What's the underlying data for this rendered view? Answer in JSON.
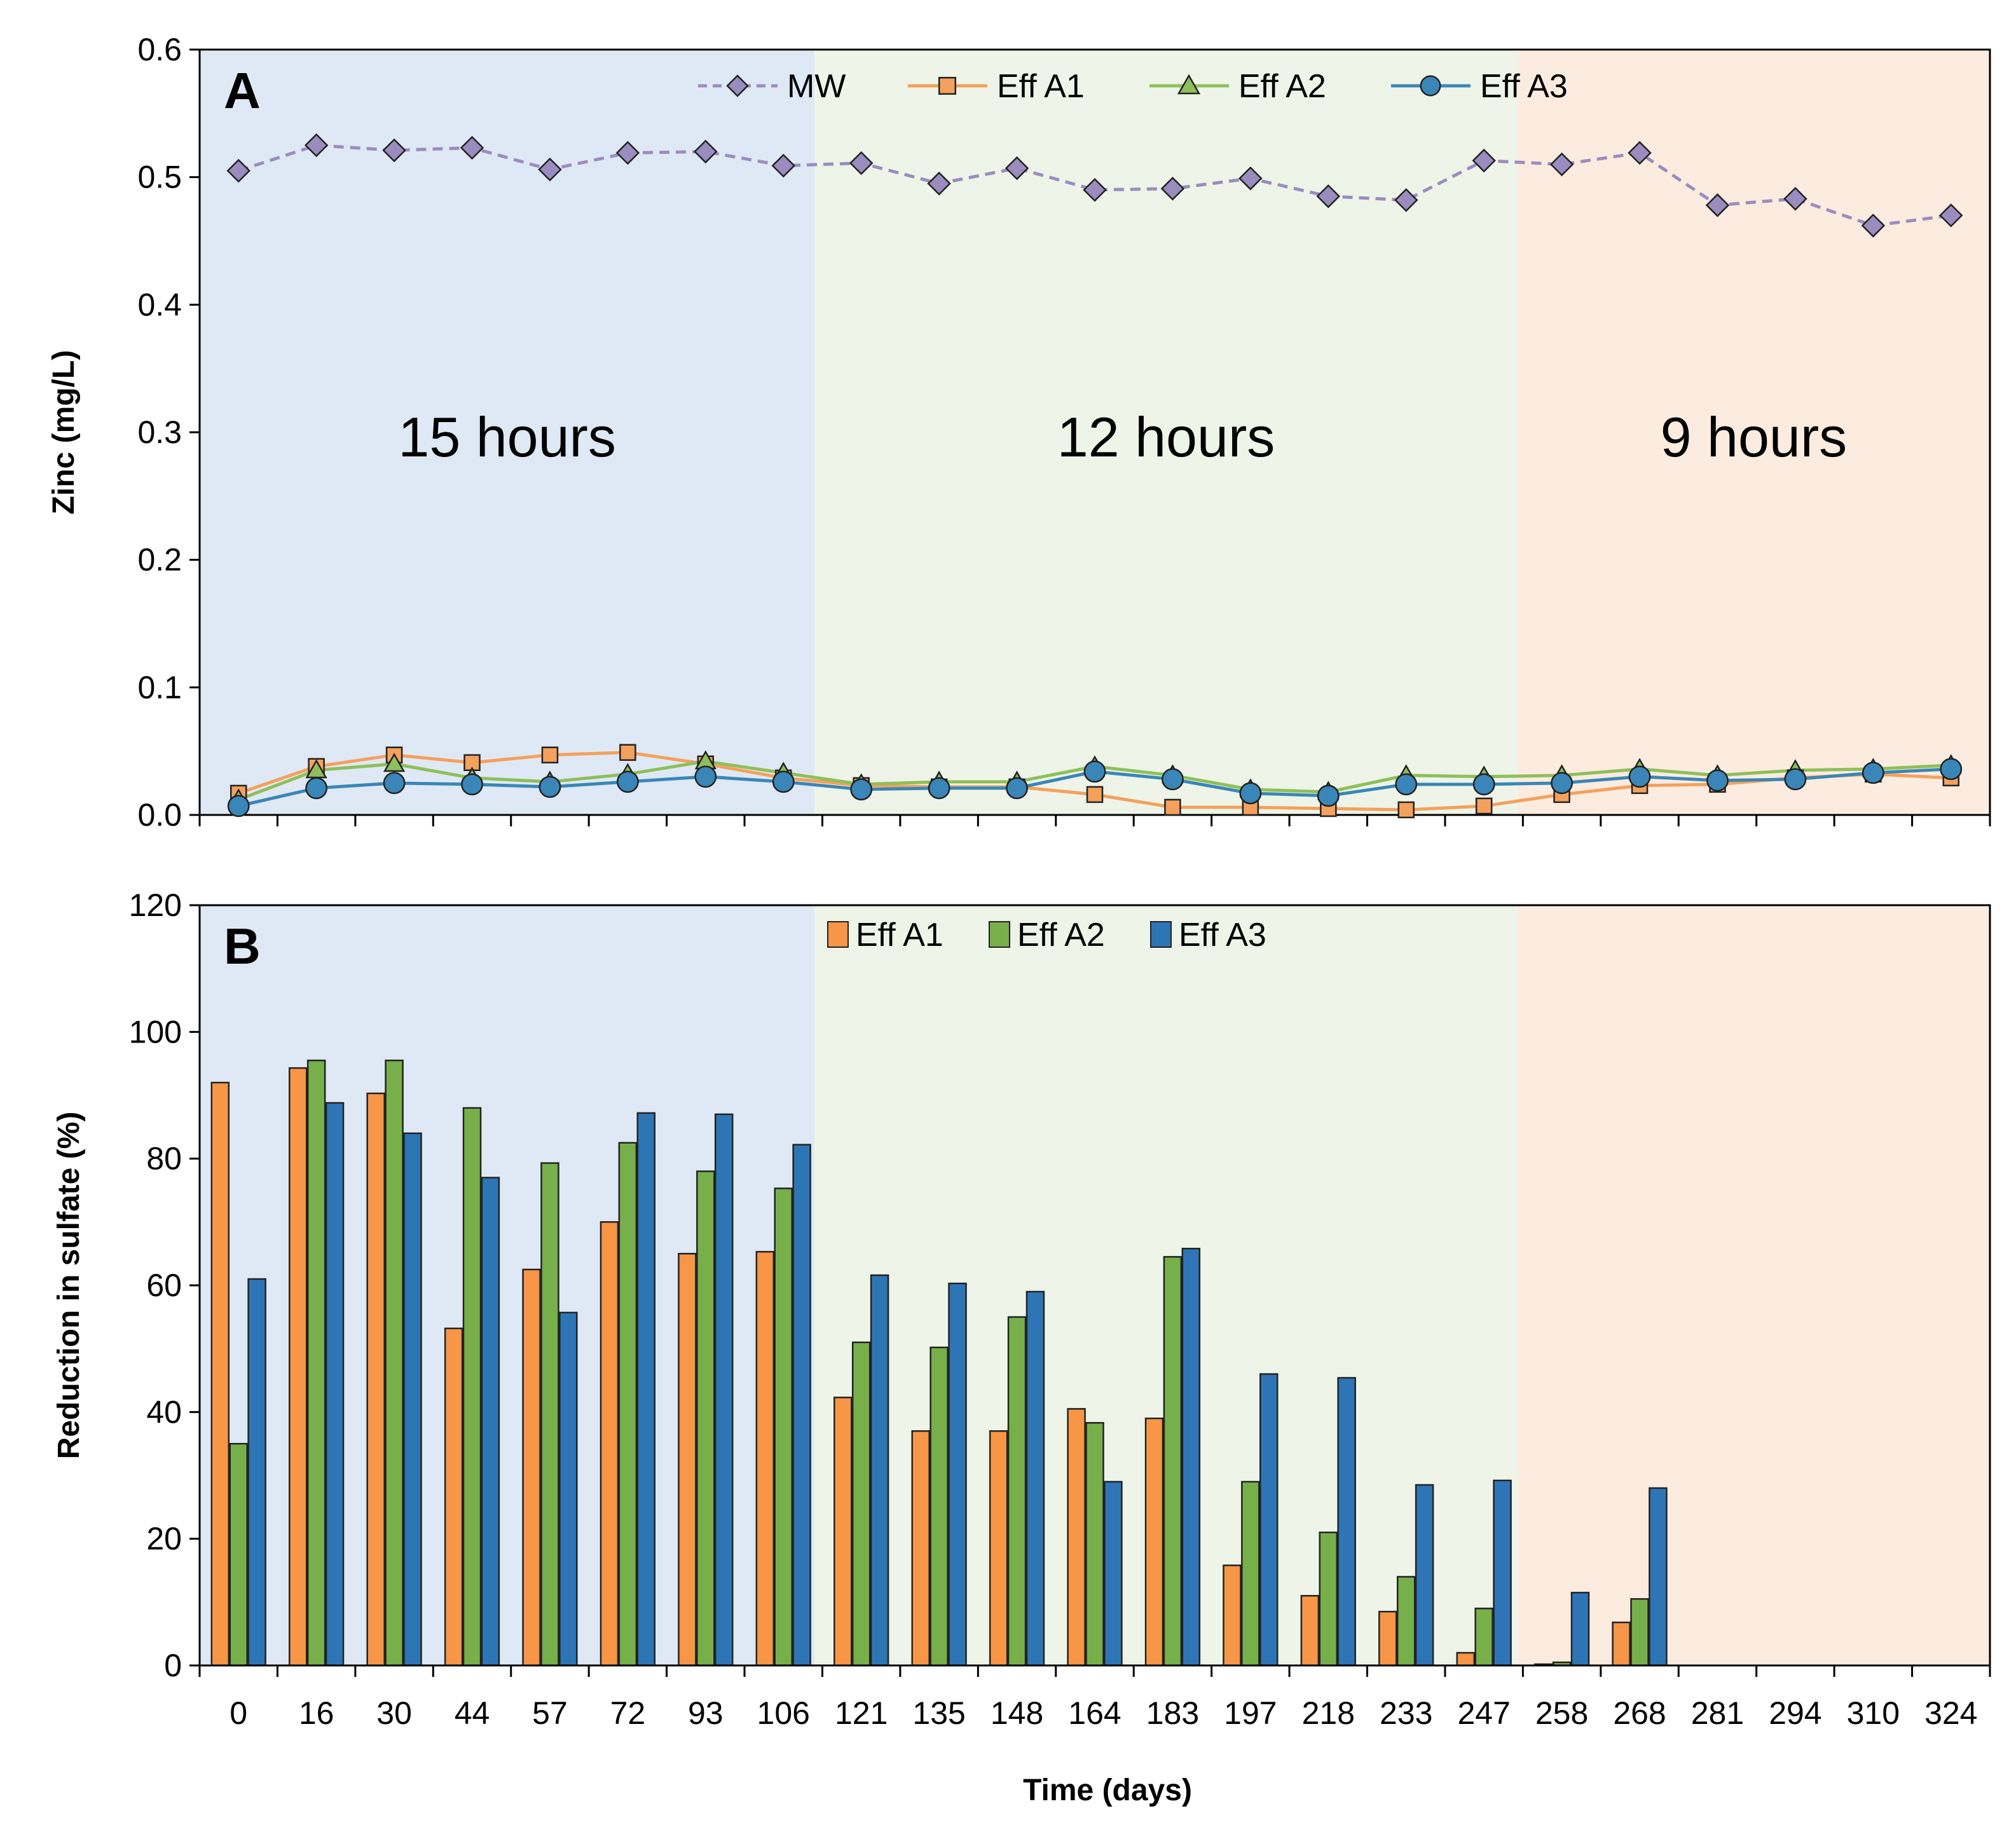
{
  "chart_data": [
    {
      "panel": "A",
      "type": "line",
      "ylabel": "Zinc (mg/L)",
      "ylim": [
        0,
        0.6
      ],
      "yticks": [
        "0.0",
        "0.1",
        "0.2",
        "0.3",
        "0.4",
        "0.5",
        "0.6"
      ],
      "categories": [
        "0",
        "16",
        "30",
        "44",
        "57",
        "72",
        "93",
        "106",
        "121",
        "135",
        "148",
        "164",
        "183",
        "197",
        "218",
        "233",
        "247",
        "258",
        "268",
        "281",
        "294",
        "310",
        "324"
      ],
      "regimes": [
        {
          "label": "15 hours",
          "from": 0,
          "to": 7,
          "color": "#dfe9f5"
        },
        {
          "label": "12 hours",
          "from": 8,
          "to": 16,
          "color": "#eef4e8"
        },
        {
          "label": "9 hours",
          "from": 17,
          "to": 22,
          "color": "#fcece0"
        }
      ],
      "series": [
        {
          "name": "MW",
          "marker": "diamond",
          "dash": true,
          "color": "#9b8cc0",
          "values": [
            0.505,
            0.525,
            0.521,
            0.523,
            0.506,
            0.519,
            0.52,
            0.509,
            0.511,
            0.495,
            0.507,
            0.49,
            0.491,
            0.499,
            0.485,
            0.482,
            0.513,
            0.51,
            0.519,
            0.478,
            0.483,
            0.462,
            0.47
          ]
        },
        {
          "name": "Eff A1",
          "marker": "square",
          "dash": false,
          "color": "#f4a15d",
          "values": [
            0.017,
            0.038,
            0.047,
            0.041,
            0.047,
            0.049,
            0.04,
            0.029,
            0.023,
            0.022,
            0.022,
            0.016,
            0.006,
            0.006,
            0.005,
            0.004,
            0.007,
            0.016,
            0.023,
            0.024,
            0.029,
            0.032,
            0.029
          ]
        },
        {
          "name": "Eff A2",
          "marker": "triangle",
          "dash": false,
          "color": "#8fbf5a",
          "values": [
            0.012,
            0.035,
            0.04,
            0.029,
            0.026,
            0.032,
            0.042,
            0.033,
            0.024,
            0.026,
            0.026,
            0.038,
            0.031,
            0.02,
            0.018,
            0.031,
            0.03,
            0.031,
            0.036,
            0.031,
            0.035,
            0.036,
            0.039
          ]
        },
        {
          "name": "Eff A3",
          "marker": "circle",
          "dash": false,
          "color": "#3a86b8",
          "values": [
            0.007,
            0.021,
            0.025,
            0.024,
            0.022,
            0.026,
            0.03,
            0.026,
            0.02,
            0.021,
            0.021,
            0.034,
            0.028,
            0.017,
            0.015,
            0.024,
            0.024,
            0.025,
            0.03,
            0.027,
            0.028,
            0.033,
            0.036
          ]
        }
      ]
    },
    {
      "panel": "B",
      "type": "bar",
      "ylabel": "Reduction in sulfate (%)",
      "xlabel": "Time (days)",
      "ylim": [
        0,
        120
      ],
      "yticks": [
        "0",
        "20",
        "40",
        "60",
        "80",
        "100",
        "120"
      ],
      "categories": [
        "0",
        "16",
        "30",
        "44",
        "57",
        "72",
        "93",
        "106",
        "121",
        "135",
        "148",
        "164",
        "183",
        "197",
        "218",
        "233",
        "247",
        "258",
        "268",
        "281",
        "294",
        "310",
        "324"
      ],
      "series": [
        {
          "name": "Eff A1",
          "color": "#f79646",
          "values": [
            92,
            94.3,
            90.3,
            53.2,
            62.5,
            70,
            65,
            65.3,
            42.3,
            37,
            37,
            40.5,
            39,
            15.8,
            11,
            8.5,
            2,
            0.2,
            6.8,
            0,
            0,
            0,
            0
          ]
        },
        {
          "name": "Eff A2",
          "color": "#77b04a",
          "values": [
            35,
            95.5,
            95.5,
            88,
            79.3,
            82.5,
            78,
            75.3,
            51,
            50.2,
            55,
            38.3,
            64.5,
            29,
            21,
            14,
            9,
            0.5,
            10.5,
            0,
            0,
            0,
            0
          ]
        },
        {
          "name": "Eff A3",
          "color": "#2e75b6",
          "values": [
            61,
            88.8,
            84,
            77,
            55.7,
            87.2,
            87,
            82.2,
            61.6,
            60.3,
            59,
            29,
            65.8,
            46,
            45.4,
            28.5,
            29.2,
            11.5,
            28,
            0,
            0,
            0,
            0
          ]
        }
      ]
    }
  ]
}
